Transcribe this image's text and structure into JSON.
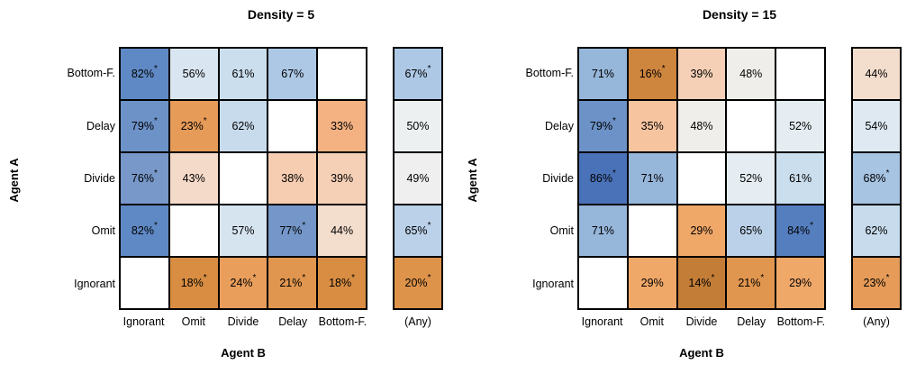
{
  "chart_data": [
    {
      "type": "heatmap",
      "title": "Density = 5",
      "xlabel": "Agent B",
      "ylabel": "Agent A",
      "row_labels": [
        "Bottom-F.",
        "Delay",
        "Divide",
        "Omit",
        "Ignorant"
      ],
      "col_labels": [
        "Ignorant",
        "Omit",
        "Divide",
        "Delay",
        "Bottom-F."
      ],
      "values_pct": [
        [
          82,
          56,
          61,
          67,
          null
        ],
        [
          79,
          23,
          62,
          null,
          33
        ],
        [
          76,
          43,
          null,
          38,
          39
        ],
        [
          82,
          null,
          57,
          77,
          44
        ],
        [
          null,
          18,
          24,
          21,
          18
        ]
      ],
      "significant": [
        [
          true,
          false,
          false,
          false,
          false
        ],
        [
          true,
          true,
          false,
          false,
          false
        ],
        [
          true,
          false,
          false,
          false,
          false
        ],
        [
          true,
          false,
          false,
          true,
          false
        ],
        [
          false,
          true,
          true,
          true,
          true
        ]
      ],
      "any_column": {
        "label": "(Any)",
        "values_pct": [
          67,
          50,
          49,
          65,
          20
        ],
        "significant": [
          true,
          false,
          false,
          true,
          true
        ]
      }
    },
    {
      "type": "heatmap",
      "title": "Density = 15",
      "xlabel": "Agent B",
      "ylabel": "Agent A",
      "row_labels": [
        "Bottom-F.",
        "Delay",
        "Divide",
        "Omit",
        "Ignorant"
      ],
      "col_labels": [
        "Ignorant",
        "Omit",
        "Divide",
        "Delay",
        "Bottom-F."
      ],
      "values_pct": [
        [
          71,
          16,
          39,
          48,
          null
        ],
        [
          79,
          35,
          48,
          null,
          52
        ],
        [
          86,
          71,
          null,
          52,
          61
        ],
        [
          71,
          null,
          29,
          65,
          84
        ],
        [
          null,
          29,
          14,
          21,
          29
        ]
      ],
      "significant": [
        [
          false,
          true,
          false,
          false,
          false
        ],
        [
          true,
          false,
          false,
          false,
          false
        ],
        [
          true,
          false,
          false,
          false,
          false
        ],
        [
          false,
          false,
          false,
          false,
          true
        ],
        [
          false,
          false,
          true,
          true,
          false
        ]
      ],
      "any_column": {
        "label": "(Any)",
        "values_pct": [
          44,
          54,
          68,
          62,
          23
        ],
        "significant": [
          false,
          false,
          true,
          false,
          true
        ]
      }
    }
  ],
  "colormap": {
    "empty_cell_color": "#ffffff",
    "low_color": "#c37d37",
    "center_color": "#ecf0f1",
    "high_color": "#4a72b8",
    "stops": [
      [
        14,
        "#c37d37"
      ],
      [
        18,
        "#d88d42"
      ],
      [
        24,
        "#e99e5c"
      ],
      [
        29,
        "#f0a869"
      ],
      [
        33,
        "#f4b282"
      ],
      [
        35,
        "#f7c4a0"
      ],
      [
        39,
        "#f6d0b6"
      ],
      [
        44,
        "#f3ddcd"
      ],
      [
        48,
        "#f0eeea"
      ],
      [
        50,
        "#ecf0f1"
      ],
      [
        54,
        "#dee9f2"
      ],
      [
        61,
        "#cbdeed"
      ],
      [
        65,
        "#bad1e9"
      ],
      [
        67,
        "#acc8e5"
      ],
      [
        71,
        "#96b6da"
      ],
      [
        76,
        "#7898ca"
      ],
      [
        79,
        "#6c92c8"
      ],
      [
        82,
        "#5f89c5"
      ],
      [
        86,
        "#4a72b8"
      ]
    ],
    "significance_marker": "*"
  }
}
